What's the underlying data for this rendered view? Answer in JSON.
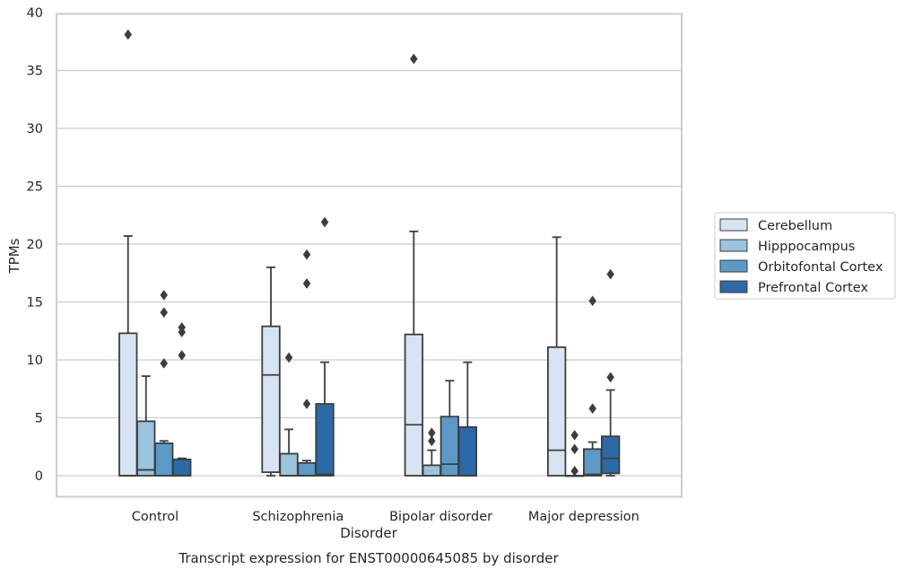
{
  "chart_data": {
    "type": "box",
    "caption": "Transcript expression for ENST00000645085 by disorder",
    "xlabel": "Disorder",
    "ylabel": "TPMs",
    "ylim": [
      -1.8,
      40
    ],
    "yticks": [
      0,
      5,
      10,
      15,
      20,
      25,
      30,
      35,
      40
    ],
    "grid": true,
    "legend_position": "right",
    "categories": [
      "Control",
      "Schizophrenia",
      "Bipolar disorder",
      "Major depression"
    ],
    "series": [
      {
        "name": "Cerebellum",
        "color": "#d6e4f2",
        "boxes": [
          {
            "whislo": 0,
            "q1": 0,
            "med": 0,
            "q3": 12.3,
            "whishi": 20.7,
            "fliers": [
              38.1
            ]
          },
          {
            "whislo": 0,
            "q1": 0.3,
            "med": 8.7,
            "q3": 12.9,
            "whishi": 18.0,
            "fliers": []
          },
          {
            "whislo": 0,
            "q1": 0,
            "med": 4.4,
            "q3": 12.2,
            "whishi": 21.1,
            "fliers": [
              36.0
            ]
          },
          {
            "whislo": 0,
            "q1": 0,
            "med": 2.2,
            "q3": 11.1,
            "whishi": 20.6,
            "fliers": []
          }
        ]
      },
      {
        "name": "Hipppocampus",
        "color": "#9ac3dd",
        "boxes": [
          {
            "whislo": 0,
            "q1": 0,
            "med": 0.5,
            "q3": 4.7,
            "whishi": 8.6,
            "fliers": []
          },
          {
            "whislo": 0,
            "q1": 0,
            "med": 0,
            "q3": 1.9,
            "whishi": 4.0,
            "fliers": [
              10.2
            ]
          },
          {
            "whislo": 0,
            "q1": 0,
            "med": 0,
            "q3": 0.9,
            "whishi": 2.2,
            "fliers": [
              3.0,
              3.7
            ]
          },
          {
            "whislo": 0,
            "q1": 0,
            "med": 0,
            "q3": 0,
            "whishi": 0,
            "fliers": [
              0.4,
              2.3,
              3.5
            ]
          }
        ]
      },
      {
        "name": "Orbitofontal Cortex",
        "color": "#5b9ac7",
        "boxes": [
          {
            "whislo": 0,
            "q1": 0,
            "med": 0,
            "q3": 2.8,
            "whishi": 3.0,
            "fliers": [
              9.7,
              14.1,
              15.6
            ]
          },
          {
            "whislo": 0,
            "q1": 0,
            "med": 0,
            "q3": 1.1,
            "whishi": 1.3,
            "fliers": [
              6.2,
              16.6,
              19.1
            ]
          },
          {
            "whislo": 0,
            "q1": 0,
            "med": 1.0,
            "q3": 5.1,
            "whishi": 8.2,
            "fliers": []
          },
          {
            "whislo": 0,
            "q1": 0,
            "med": 0.1,
            "q3": 2.3,
            "whishi": 2.9,
            "fliers": [
              5.8,
              15.1
            ]
          }
        ]
      },
      {
        "name": "Prefrontal Cortex",
        "color": "#2b6aa7",
        "boxes": [
          {
            "whislo": 0,
            "q1": 0,
            "med": 0,
            "q3": 1.4,
            "whishi": 1.5,
            "fliers": [
              10.4,
              12.4,
              12.8
            ]
          },
          {
            "whislo": 0,
            "q1": 0,
            "med": 0.1,
            "q3": 6.2,
            "whishi": 9.8,
            "fliers": [
              21.9
            ]
          },
          {
            "whislo": 0,
            "q1": 0,
            "med": 0,
            "q3": 4.2,
            "whishi": 9.8,
            "fliers": []
          },
          {
            "whislo": 0,
            "q1": 0.2,
            "med": 1.5,
            "q3": 3.4,
            "whishi": 7.4,
            "fliers": [
              8.5,
              17.4
            ]
          }
        ]
      }
    ]
  }
}
